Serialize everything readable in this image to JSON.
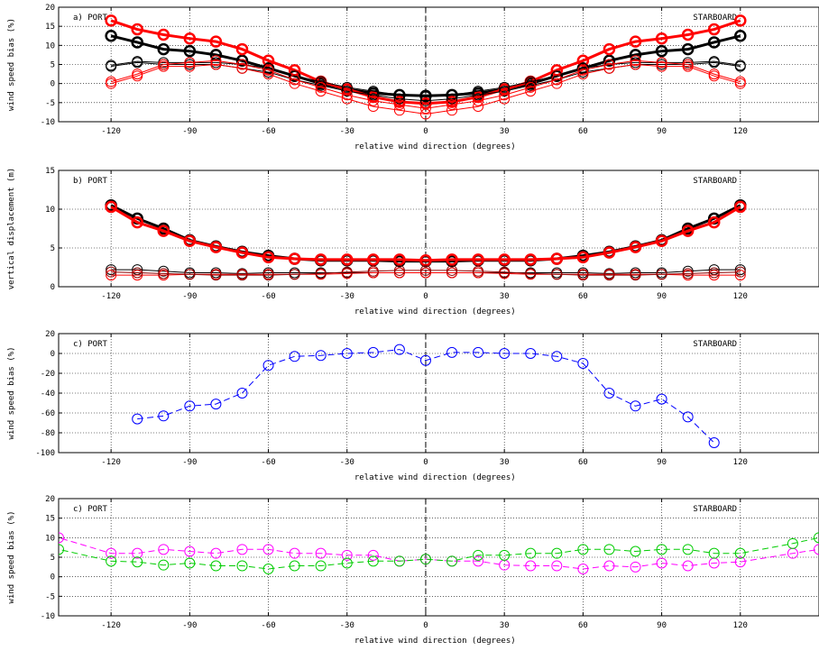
{
  "chart_data": [
    {
      "type": "line",
      "panel_label": "a) PORT",
      "right_label": "STARBOARD",
      "xlabel": "relative wind direction (degrees)",
      "ylabel": "wind speed bias (%)",
      "xlim": [
        -140,
        150
      ],
      "ylim": [
        -10,
        20
      ],
      "xticks": [
        -120,
        -90,
        -60,
        -30,
        0,
        30,
        60,
        90,
        120
      ],
      "yticks": [
        -10,
        -5,
        0,
        5,
        10,
        15,
        20
      ],
      "x": [
        -120,
        -110,
        -100,
        -90,
        -80,
        -70,
        -60,
        -50,
        -40,
        -30,
        -20,
        -10,
        0,
        10,
        20,
        30,
        40,
        50,
        60,
        70,
        80,
        90,
        100,
        110,
        120
      ],
      "series": [
        {
          "color": "#000000",
          "width": 3,
          "values": [
            12.5,
            10.8,
            9.0,
            8.5,
            7.5,
            6.0,
            4.0,
            2.0,
            0.0,
            -1.5,
            -2.5,
            -3.0,
            -3.2,
            -3.0,
            -2.5,
            -1.5,
            0.0,
            2.0,
            4.0,
            6.0,
            7.5,
            8.5,
            9.0,
            10.8,
            12.5
          ]
        },
        {
          "color": "#ff0000",
          "width": 3,
          "values": [
            16.5,
            14.2,
            12.8,
            11.8,
            11.0,
            9.0,
            6.0,
            3.5,
            0.5,
            -1.5,
            -3.5,
            -4.8,
            -5.2,
            -4.8,
            -3.5,
            -1.5,
            0.5,
            3.5,
            6.0,
            9.0,
            11.0,
            11.8,
            12.8,
            14.2,
            16.5
          ]
        },
        {
          "color": "#000000",
          "width": 1,
          "values": [
            4.8,
            5.8,
            5.5,
            5.5,
            5.5,
            5.0,
            4.0,
            2.0,
            0.5,
            -1.0,
            -2.0,
            -3.0,
            -3.5,
            -3.0,
            -2.0,
            -1.0,
            0.5,
            2.0,
            4.0,
            5.0,
            5.5,
            5.5,
            5.5,
            5.8,
            4.8
          ]
        },
        {
          "color": "#000000",
          "width": 1,
          "values": [
            4.5,
            5.5,
            5.0,
            5.0,
            5.0,
            4.0,
            3.0,
            1.0,
            -0.5,
            -2.0,
            -3.0,
            -4.0,
            -4.5,
            -4.0,
            -3.0,
            -2.0,
            -0.5,
            1.0,
            3.0,
            4.0,
            5.0,
            5.0,
            5.0,
            5.5,
            4.5
          ]
        },
        {
          "color": "#ff0000",
          "width": 1,
          "values": [
            0.5,
            2.5,
            5.0,
            5.5,
            6.0,
            5.0,
            3.5,
            1.0,
            -1.0,
            -3.0,
            -4.5,
            -5.5,
            -6.5,
            -5.5,
            -4.5,
            -3.0,
            -1.0,
            1.0,
            3.5,
            5.0,
            6.0,
            5.5,
            5.0,
            2.5,
            0.5
          ]
        },
        {
          "color": "#ff0000",
          "width": 1,
          "values": [
            0.0,
            2.0,
            4.5,
            4.5,
            5.0,
            4.0,
            2.5,
            0.0,
            -2.0,
            -4.0,
            -6.0,
            -7.0,
            -8.0,
            -7.0,
            -6.0,
            -4.0,
            -2.0,
            0.0,
            2.5,
            4.0,
            5.0,
            4.5,
            4.5,
            2.0,
            0.0
          ]
        }
      ]
    },
    {
      "type": "line",
      "panel_label": "b) PORT",
      "right_label": "STARBOARD",
      "xlabel": "relative wind direction (degrees)",
      "ylabel": "vertical displacement (m)",
      "xlim": [
        -140,
        150
      ],
      "ylim": [
        0,
        15
      ],
      "xticks": [
        -120,
        -90,
        -60,
        -30,
        0,
        30,
        60,
        90,
        120
      ],
      "yticks": [
        0,
        5,
        10,
        15
      ],
      "x": [
        -120,
        -110,
        -100,
        -90,
        -80,
        -70,
        -60,
        -50,
        -40,
        -30,
        -20,
        -10,
        0,
        10,
        20,
        30,
        40,
        50,
        60,
        70,
        80,
        90,
        100,
        110,
        120
      ],
      "series": [
        {
          "color": "#000000",
          "width": 3,
          "values": [
            10.5,
            8.8,
            7.5,
            6.0,
            5.2,
            4.5,
            4.0,
            3.6,
            3.4,
            3.4,
            3.4,
            3.3,
            3.3,
            3.3,
            3.4,
            3.4,
            3.4,
            3.6,
            4.0,
            4.5,
            5.2,
            6.0,
            7.5,
            8.8,
            10.5
          ]
        },
        {
          "color": "#ff0000",
          "width": 3,
          "values": [
            10.3,
            8.3,
            7.2,
            5.9,
            5.1,
            4.4,
            3.8,
            3.6,
            3.5,
            3.5,
            3.5,
            3.5,
            3.4,
            3.5,
            3.5,
            3.5,
            3.5,
            3.6,
            3.8,
            4.4,
            5.1,
            5.9,
            7.2,
            8.3,
            10.3
          ]
        },
        {
          "color": "#000000",
          "width": 1,
          "values": [
            2.2,
            2.2,
            2.0,
            1.8,
            1.8,
            1.7,
            1.8,
            1.8,
            1.8,
            1.8,
            1.8,
            1.8,
            1.8,
            1.8,
            1.8,
            1.8,
            1.8,
            1.8,
            1.8,
            1.7,
            1.8,
            1.8,
            2.0,
            2.2,
            2.2
          ]
        },
        {
          "color": "#ff0000",
          "width": 1,
          "values": [
            1.5,
            1.5,
            1.5,
            1.6,
            1.6,
            1.6,
            1.6,
            1.6,
            1.6,
            1.7,
            1.8,
            1.8,
            1.8,
            1.8,
            1.8,
            1.7,
            1.6,
            1.6,
            1.6,
            1.6,
            1.6,
            1.6,
            1.5,
            1.5,
            1.5
          ]
        },
        {
          "color": "#8b0000",
          "width": 1,
          "values": [
            1.9,
            1.8,
            1.7,
            1.6,
            1.5,
            1.5,
            1.5,
            1.6,
            1.7,
            1.9,
            2.0,
            2.1,
            2.1,
            2.1,
            2.0,
            1.9,
            1.7,
            1.6,
            1.5,
            1.5,
            1.5,
            1.6,
            1.7,
            1.8,
            1.9
          ]
        }
      ]
    },
    {
      "type": "line",
      "panel_label": "c) PORT",
      "right_label": "STARBOARD",
      "xlabel": "relative wind direction (degrees)",
      "ylabel": "wind speed bias (%)",
      "xlim": [
        -140,
        150
      ],
      "ylim": [
        -100,
        20
      ],
      "xticks": [
        -120,
        -90,
        -60,
        -30,
        0,
        30,
        60,
        90,
        120
      ],
      "yticks": [
        -100,
        -80,
        -60,
        -40,
        -20,
        0,
        20
      ],
      "x": [
        -110,
        -100,
        -90,
        -80,
        -70,
        -60,
        -50,
        -40,
        -30,
        -20,
        -10,
        0,
        10,
        20,
        30,
        40,
        50,
        60,
        70,
        80,
        90,
        100,
        110
      ],
      "series": [
        {
          "color": "#0000ff",
          "width": 1,
          "dash": true,
          "values": [
            -66,
            -63,
            -53,
            -51,
            -40,
            -12,
            -3,
            -2,
            0,
            1,
            4,
            -7,
            1,
            1,
            0,
            0,
            -3,
            -10,
            -40,
            -53,
            -46,
            -64,
            -90
          ]
        }
      ]
    },
    {
      "type": "line",
      "panel_label": "c) PORT",
      "right_label": "STARBOARD",
      "xlabel": "relative wind direction (degrees)",
      "ylabel": "wind speed bias (%)",
      "xlim": [
        -140,
        150
      ],
      "ylim": [
        -10,
        20
      ],
      "xticks": [
        -120,
        -90,
        -60,
        -30,
        0,
        30,
        60,
        90,
        120
      ],
      "yticks": [
        -10,
        -5,
        0,
        5,
        10,
        15,
        20
      ],
      "series": [
        {
          "color": "#ff00ff",
          "width": 1,
          "dash": true,
          "x": [
            -150,
            -140,
            -120,
            -110,
            -100,
            -90,
            -80,
            -70,
            -60,
            -50,
            -40,
            -30,
            -20,
            -10,
            0,
            10,
            20,
            30,
            40,
            50,
            60,
            70,
            80,
            90,
            100,
            110,
            120,
            140,
            150
          ],
          "values": [
            11.5,
            10.0,
            6.0,
            6.0,
            7.0,
            6.5,
            6.0,
            7.0,
            7.0,
            6.0,
            6.0,
            5.5,
            5.5,
            4.0,
            4.5,
            4.0,
            4.0,
            3.0,
            2.8,
            2.8,
            2.0,
            2.8,
            2.5,
            3.5,
            2.8,
            3.5,
            3.8,
            6.0,
            7.0
          ]
        },
        {
          "color": "#00cc00",
          "width": 1,
          "dash": true,
          "x": [
            -150,
            -140,
            -120,
            -110,
            -100,
            -90,
            -80,
            -70,
            -60,
            -50,
            -40,
            -30,
            -20,
            -10,
            0,
            10,
            20,
            30,
            40,
            50,
            60,
            70,
            80,
            90,
            100,
            110,
            120,
            140,
            150
          ],
          "values": [
            7.5,
            7.0,
            4.0,
            3.8,
            3.0,
            3.5,
            2.8,
            2.8,
            2.0,
            2.8,
            2.8,
            3.5,
            4.0,
            4.0,
            4.5,
            4.0,
            5.5,
            5.5,
            6.0,
            6.0,
            7.0,
            7.0,
            6.5,
            7.0,
            7.0,
            6.0,
            6.0,
            8.5,
            10.0
          ]
        }
      ]
    }
  ]
}
